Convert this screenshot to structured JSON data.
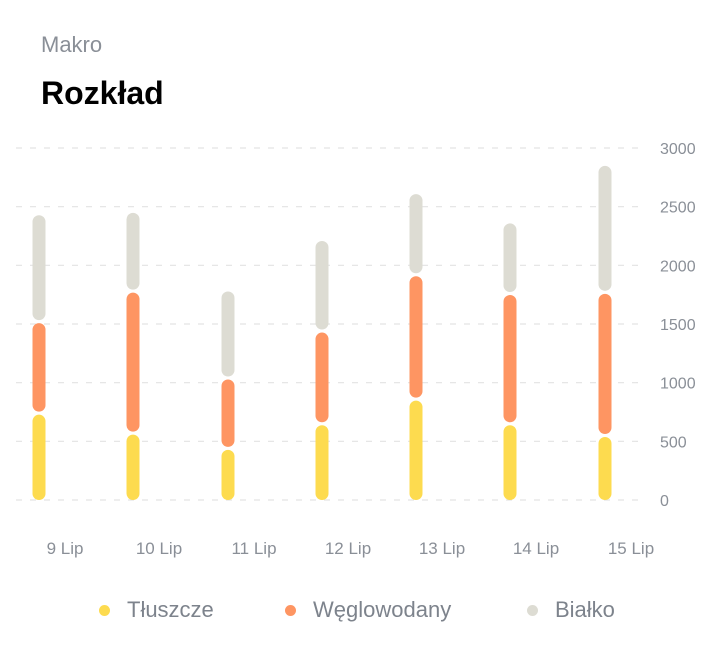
{
  "header": {
    "subtitle": "Makro",
    "title": "Rozkład"
  },
  "legend": {
    "items": [
      {
        "label": "Tłuszcze",
        "color": "#fddb4f"
      },
      {
        "label": "Węglowodany",
        "color": "#fe9562"
      },
      {
        "label": "Białko",
        "color": "#dddcd3"
      }
    ]
  },
  "chart_data": {
    "type": "bar",
    "stacked": true,
    "categories": [
      "9 Lip",
      "10 Lip",
      "11 Lip",
      "12 Lip",
      "13 Lip",
      "14 Lip",
      "15 Lip"
    ],
    "series": [
      {
        "name": "Tłuszcze",
        "color": "#fddb4f",
        "values": [
          740,
          570,
          440,
          650,
          860,
          650,
          550
        ]
      },
      {
        "name": "Węglowodany",
        "color": "#fe9562",
        "values": [
          780,
          1210,
          600,
          790,
          1060,
          1110,
          1220
        ]
      },
      {
        "name": "Białko",
        "color": "#dddcd3",
        "values": [
          920,
          680,
          750,
          780,
          700,
          610,
          1090
        ]
      }
    ],
    "yticks": [
      0,
      500,
      1000,
      1500,
      2000,
      2500,
      3000
    ],
    "ylim": [
      0,
      3000
    ],
    "yaxis_position": "right",
    "grid": true,
    "legend_position": "bottom"
  }
}
